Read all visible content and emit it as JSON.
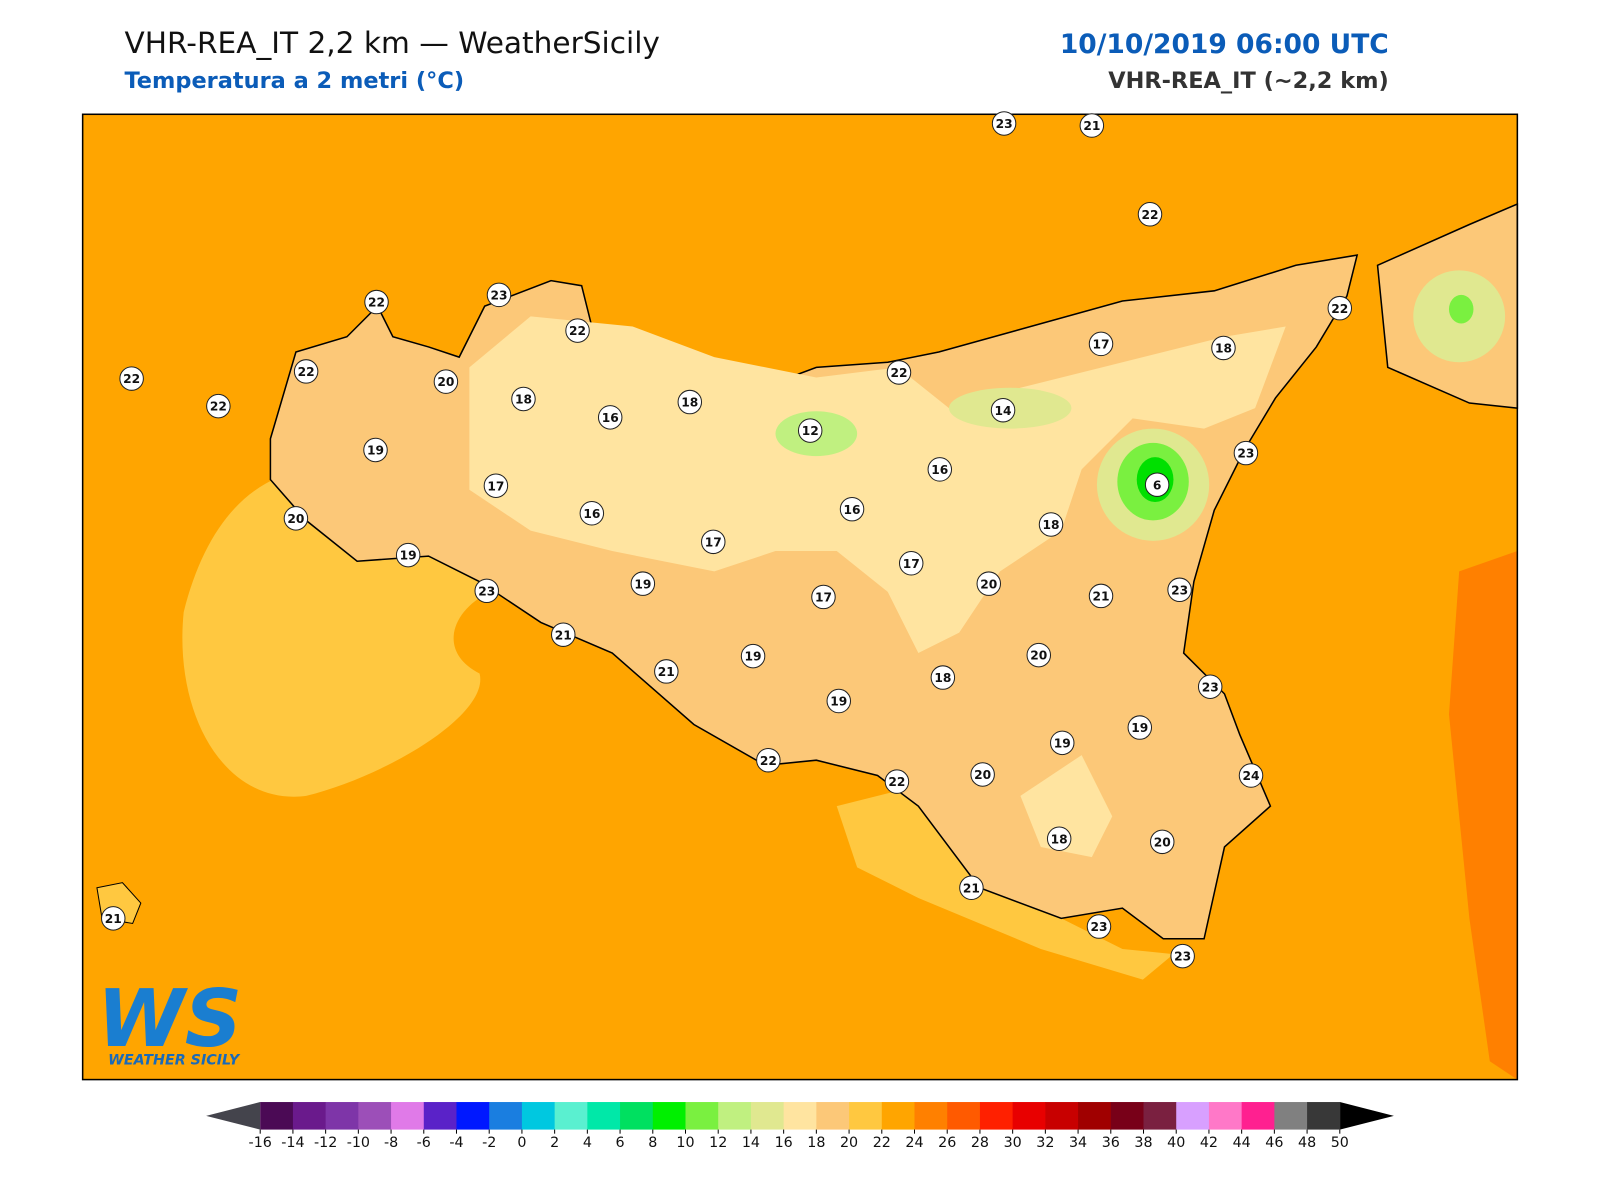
{
  "header": {
    "title": "VHR-REA_IT 2,2 km — WeatherSicily",
    "subtitle": "Temperatura a 2 metri (°C)",
    "date": "10/10/2019 06:00 UTC",
    "model": "VHR-REA_IT (~2,2 km)"
  },
  "logo": {
    "initials": "WS",
    "name": "WEATHER SICILY"
  },
  "stations": [
    23,
    21,
    22,
    22,
    23,
    22,
    22,
    22,
    22,
    20,
    22,
    17,
    18,
    22,
    18,
    18,
    16,
    14,
    12,
    19,
    16,
    23,
    6,
    17,
    16,
    16,
    20,
    18,
    17,
    19,
    17,
    20,
    23,
    19,
    17,
    21,
    23,
    21,
    19,
    20,
    21,
    18,
    23,
    19,
    19,
    19,
    22,
    22,
    20,
    24,
    18,
    20,
    21,
    21,
    23,
    23
  ],
  "colorbar": {
    "ticks": [
      -16,
      -14,
      -12,
      -10,
      -8,
      -6,
      -4,
      -2,
      0,
      2,
      4,
      6,
      8,
      10,
      12,
      14,
      16,
      18,
      20,
      22,
      24,
      26,
      28,
      30,
      32,
      34,
      36,
      38,
      40,
      42,
      44,
      46,
      48,
      50
    ],
    "colors": [
      "#4b0a55",
      "#6a1a8c",
      "#7e35a8",
      "#9c4fb8",
      "#e07ae8",
      "#5a22c8",
      "#0018ff",
      "#1a7ee0",
      "#00c8e0",
      "#5af0d0",
      "#00e8a8",
      "#00e060",
      "#00f000",
      "#7af040",
      "#c0f080",
      "#e0e890",
      "#ffe4a0",
      "#fcc878",
      "#ffc840",
      "#ffa500",
      "#ff8000",
      "#ff5a00",
      "#ff2000",
      "#e80000",
      "#c80000",
      "#a00000",
      "#780018",
      "#7a2040",
      "#d8a0ff",
      "#ff78c8",
      "#ff2090",
      "#808080",
      "#383838"
    ],
    "under": "#44444c",
    "over": "#000000"
  }
}
